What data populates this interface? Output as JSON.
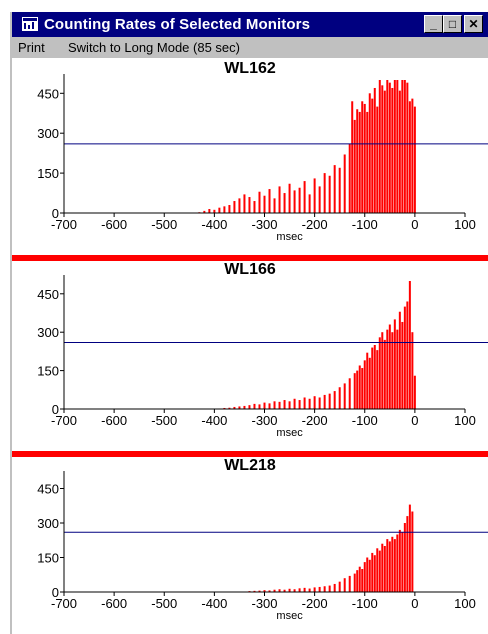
{
  "window": {
    "title": "Counting Rates of Selected Monitors",
    "buttons": {
      "minimize": "_",
      "maximize": "□",
      "close": "✕"
    }
  },
  "menu": {
    "items": [
      "Print",
      "Switch to Long Mode (85 sec)"
    ]
  },
  "colors": {
    "bar": "#ff0000",
    "threshold_line": "#000080",
    "separator": "#ff0000"
  },
  "chart_data": [
    {
      "type": "bar",
      "title": "WL162",
      "xlabel": "msec",
      "xlim": [
        -700,
        100
      ],
      "ylim": [
        0,
        500
      ],
      "xticks": [
        "-700",
        "-600",
        "-500",
        "-400",
        "-300",
        "-200",
        "-100",
        "0",
        "100"
      ],
      "yticks": [
        "0",
        "150",
        "300",
        "450"
      ],
      "threshold": 260,
      "series": [
        {
          "x": [
            -430,
            -420,
            -410,
            -400,
            -390,
            -380,
            -370,
            -360,
            -350,
            -340,
            -330,
            -320,
            -310,
            -300,
            -290,
            -280,
            -270,
            -260,
            -250,
            -240,
            -230,
            -220,
            -210,
            -200,
            -190,
            -180,
            -170,
            -160,
            -150,
            -140,
            -130,
            -125,
            -120,
            -115,
            -110,
            -105,
            -100,
            -95,
            -90,
            -85,
            -80,
            -75,
            -70,
            -65,
            -60,
            -55,
            -50,
            -45,
            -40,
            -35,
            -30,
            -25,
            -20,
            -15,
            -10,
            -5,
            0
          ],
          "values": [
            3,
            8,
            15,
            12,
            20,
            25,
            30,
            45,
            55,
            70,
            60,
            45,
            80,
            65,
            90,
            55,
            100,
            75,
            110,
            85,
            95,
            120,
            70,
            130,
            100,
            150,
            140,
            180,
            170,
            220,
            260,
            420,
            350,
            390,
            380,
            420,
            410,
            380,
            450,
            430,
            470,
            400,
            500,
            480,
            460,
            500,
            490,
            470,
            500,
            500,
            460,
            500,
            500,
            490,
            420,
            430,
            400
          ]
        }
      ]
    },
    {
      "type": "bar",
      "title": "WL166",
      "xlabel": "msec",
      "xlim": [
        -700,
        100
      ],
      "ylim": [
        0,
        500
      ],
      "xticks": [
        "-700",
        "-600",
        "-500",
        "-400",
        "-300",
        "-200",
        "-100",
        "0",
        "100"
      ],
      "yticks": [
        "0",
        "150",
        "300",
        "450"
      ],
      "threshold": 260,
      "series": [
        {
          "x": [
            -390,
            -380,
            -370,
            -360,
            -350,
            -340,
            -330,
            -320,
            -310,
            -300,
            -290,
            -280,
            -270,
            -260,
            -250,
            -240,
            -230,
            -220,
            -210,
            -200,
            -190,
            -180,
            -170,
            -160,
            -150,
            -140,
            -130,
            -120,
            -115,
            -110,
            -105,
            -100,
            -95,
            -90,
            -85,
            -80,
            -75,
            -70,
            -65,
            -60,
            -55,
            -50,
            -45,
            -40,
            -35,
            -30,
            -25,
            -20,
            -15,
            -10,
            -5,
            0
          ],
          "values": [
            2,
            4,
            5,
            8,
            10,
            12,
            15,
            20,
            18,
            25,
            22,
            30,
            28,
            35,
            30,
            40,
            35,
            45,
            40,
            50,
            45,
            55,
            60,
            70,
            85,
            100,
            120,
            140,
            150,
            170,
            160,
            190,
            220,
            200,
            240,
            250,
            230,
            280,
            300,
            270,
            310,
            330,
            300,
            350,
            310,
            380,
            340,
            400,
            420,
            500,
            300,
            130
          ]
        }
      ]
    },
    {
      "type": "bar",
      "title": "WL218",
      "xlabel": "msec",
      "xlim": [
        -700,
        100
      ],
      "ylim": [
        0,
        500
      ],
      "xticks": [
        "-700",
        "-600",
        "-500",
        "-400",
        "-300",
        "-200",
        "-100",
        "0",
        "100"
      ],
      "yticks": [
        "0",
        "150",
        "300",
        "450"
      ],
      "threshold": 260,
      "series": [
        {
          "x": [
            -330,
            -320,
            -310,
            -300,
            -290,
            -280,
            -270,
            -260,
            -250,
            -240,
            -230,
            -220,
            -210,
            -200,
            -190,
            -180,
            -170,
            -160,
            -150,
            -140,
            -130,
            -120,
            -115,
            -110,
            -105,
            -100,
            -95,
            -90,
            -85,
            -80,
            -75,
            -70,
            -65,
            -60,
            -55,
            -50,
            -45,
            -40,
            -35,
            -30,
            -25,
            -20,
            -15,
            -10,
            -5
          ],
          "values": [
            4,
            5,
            6,
            8,
            7,
            10,
            12,
            10,
            14,
            12,
            16,
            18,
            15,
            20,
            22,
            25,
            28,
            35,
            45,
            60,
            70,
            80,
            95,
            110,
            100,
            130,
            150,
            140,
            170,
            160,
            190,
            180,
            210,
            200,
            230,
            220,
            240,
            230,
            250,
            270,
            260,
            300,
            330,
            380,
            350
          ]
        }
      ]
    }
  ]
}
